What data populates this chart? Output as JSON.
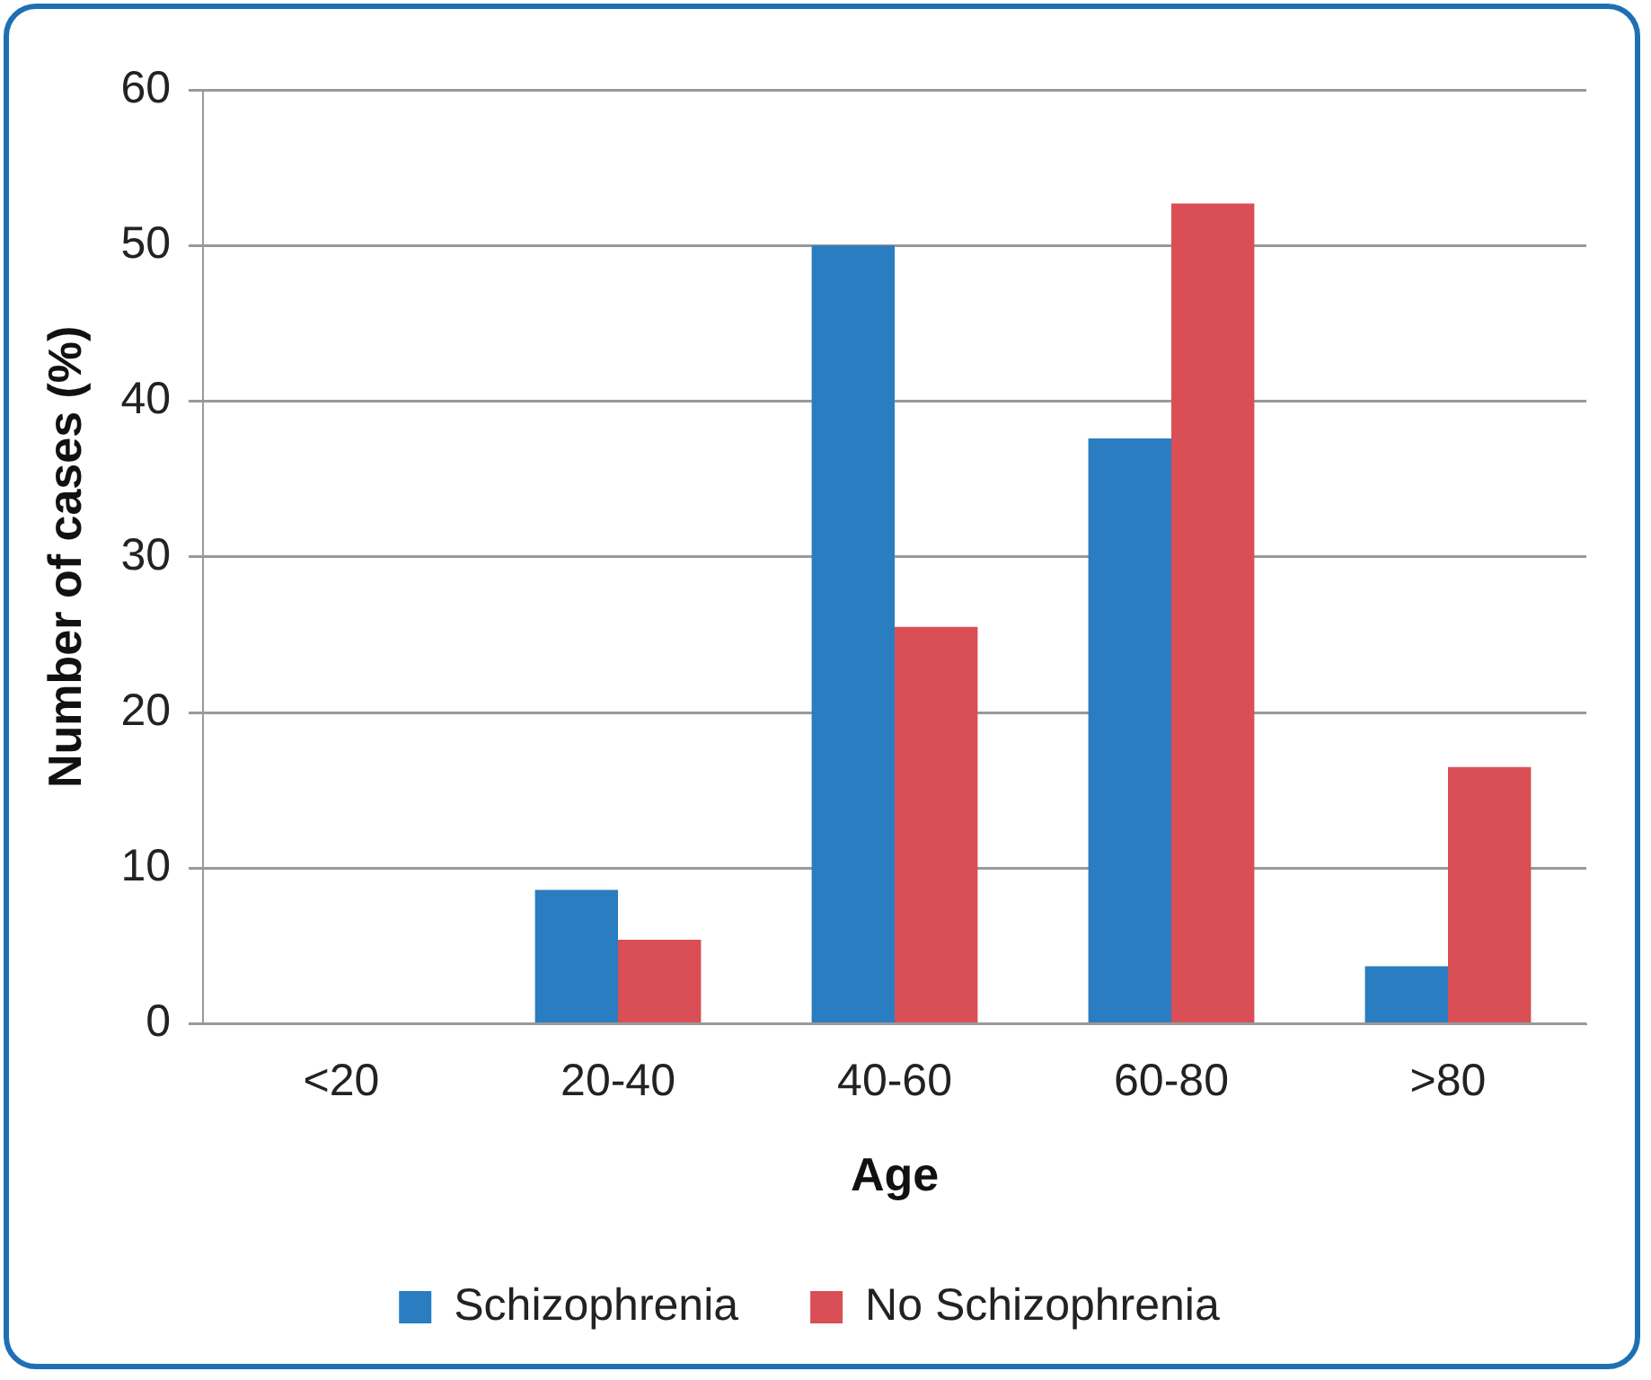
{
  "chart_data": {
    "type": "bar",
    "xlabel": "Age",
    "ylabel": "Number of cases (%)",
    "categories": [
      "<20",
      "20-40",
      "40-60",
      "60-80",
      ">80"
    ],
    "series": [
      {
        "name": "Schizophrenia",
        "color": "#2a7dc0",
        "values": [
          0,
          8.6,
          50,
          37.6,
          3.7
        ]
      },
      {
        "name": "No Schizophrenia",
        "color": "#d94f55",
        "values": [
          0,
          5.4,
          25.5,
          52.7,
          16.5
        ]
      }
    ],
    "ylim": [
      0,
      60
    ],
    "yticks": [
      0,
      10,
      20,
      30,
      40,
      50,
      60
    ],
    "grid": "y",
    "legend": "bottom"
  }
}
